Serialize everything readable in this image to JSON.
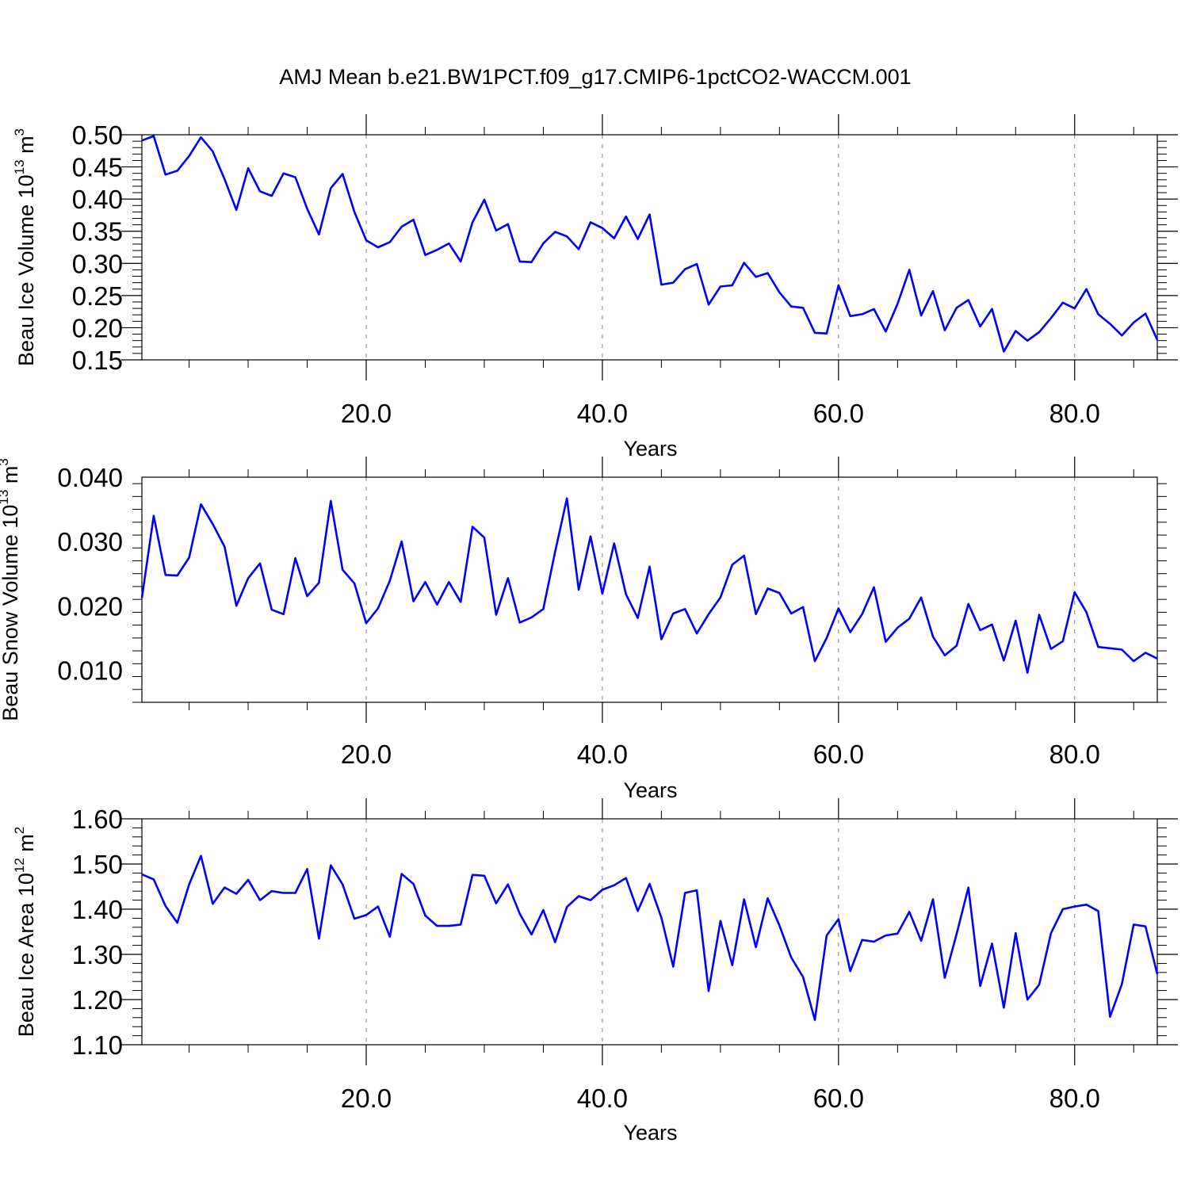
{
  "figure": {
    "title": "AMJ Mean b.e21.BW1PCT.f09_g17.CMIP6-1pctCO2-WACCM.001",
    "line_color": "#0000ff"
  },
  "chart_data": [
    {
      "type": "line",
      "ylabel": "Beau Ice Volume 10",
      "ylabel_exp": "13",
      "ylabel_unit": "m",
      "ylabel_unit_exp": "3",
      "xlabel": "Years",
      "xlim": [
        1,
        87
      ],
      "ylim": [
        0.15,
        0.5
      ],
      "yticks": [
        0.15,
        0.2,
        0.25,
        0.3,
        0.35,
        0.4,
        0.45,
        0.5
      ],
      "ytick_labels": [
        "0.15",
        "0.20",
        "0.25",
        "0.30",
        "0.35",
        "0.40",
        "0.45",
        "0.50"
      ],
      "xticks": [
        20,
        40,
        60,
        80
      ],
      "xtick_labels": [
        "20.0",
        "40.0",
        "60.0",
        "80.0"
      ],
      "grid": "vertical dashed at major x ticks",
      "x": [
        1,
        2,
        3,
        4,
        5,
        6,
        7,
        8,
        9,
        10,
        11,
        12,
        13,
        14,
        15,
        16,
        17,
        18,
        19,
        20,
        21,
        22,
        23,
        24,
        25,
        26,
        27,
        28,
        29,
        30,
        31,
        32,
        33,
        34,
        35,
        36,
        37,
        38,
        39,
        40,
        41,
        42,
        43,
        44,
        45,
        46,
        47,
        48,
        49,
        50,
        51,
        52,
        53,
        54,
        55,
        56,
        57,
        58,
        59,
        60,
        61,
        62,
        63,
        64,
        65,
        66,
        67,
        68,
        69,
        70,
        71,
        72,
        73,
        74,
        75,
        76,
        77,
        78,
        79,
        80,
        81,
        82,
        83,
        84,
        85,
        86,
        87
      ],
      "values": [
        0.491,
        0.498,
        0.438,
        0.444,
        0.467,
        0.496,
        0.474,
        0.431,
        0.383,
        0.448,
        0.412,
        0.405,
        0.44,
        0.434,
        0.385,
        0.345,
        0.417,
        0.439,
        0.38,
        0.336,
        0.325,
        0.333,
        0.357,
        0.368,
        0.313,
        0.321,
        0.331,
        0.303,
        0.364,
        0.399,
        0.351,
        0.361,
        0.303,
        0.302,
        0.331,
        0.349,
        0.342,
        0.322,
        0.364,
        0.355,
        0.339,
        0.373,
        0.338,
        0.376,
        0.267,
        0.27,
        0.291,
        0.299,
        0.236,
        0.264,
        0.266,
        0.301,
        0.279,
        0.285,
        0.255,
        0.233,
        0.231,
        0.192,
        0.191,
        0.266,
        0.218,
        0.221,
        0.229,
        0.194,
        0.237,
        0.29,
        0.219,
        0.257,
        0.196,
        0.231,
        0.243,
        0.202,
        0.229,
        0.163,
        0.195,
        0.18,
        0.193,
        0.215,
        0.239,
        0.23,
        0.26,
        0.221,
        0.206,
        0.188,
        0.208,
        0.222,
        0.181
      ]
    },
    {
      "type": "line",
      "ylabel": "Beau Snow Volume 10",
      "ylabel_exp": "13",
      "ylabel_unit": "m",
      "ylabel_unit_exp": "3",
      "xlabel": "Years",
      "xlim": [
        1,
        87
      ],
      "ylim": [
        0.005,
        0.04
      ],
      "yticks": [
        0.01,
        0.02,
        0.03,
        0.04
      ],
      "ytick_labels": [
        "0.010",
        "0.020",
        "0.030",
        "0.040"
      ],
      "xticks": [
        20,
        40,
        60,
        80
      ],
      "xtick_labels": [
        "20.0",
        "40.0",
        "60.0",
        "80.0"
      ],
      "grid": "vertical dashed at major x ticks",
      "x": [
        1,
        2,
        3,
        4,
        5,
        6,
        7,
        8,
        9,
        10,
        11,
        12,
        13,
        14,
        15,
        16,
        17,
        18,
        19,
        20,
        21,
        22,
        23,
        24,
        25,
        26,
        27,
        28,
        29,
        30,
        31,
        32,
        33,
        34,
        35,
        36,
        37,
        38,
        39,
        40,
        41,
        42,
        43,
        44,
        45,
        46,
        47,
        48,
        49,
        50,
        51,
        52,
        53,
        54,
        55,
        56,
        57,
        58,
        59,
        60,
        61,
        62,
        63,
        64,
        65,
        66,
        67,
        68,
        69,
        70,
        71,
        72,
        73,
        74,
        75,
        76,
        77,
        78,
        79,
        80,
        81,
        82,
        83,
        84,
        85,
        86,
        87
      ],
      "values": [
        0.0212,
        0.034,
        0.0248,
        0.0247,
        0.0275,
        0.0358,
        0.0327,
        0.0292,
        0.02,
        0.0243,
        0.0266,
        0.0194,
        0.0187,
        0.0274,
        0.0215,
        0.0236,
        0.0363,
        0.0256,
        0.0235,
        0.0173,
        0.0196,
        0.0239,
        0.03,
        0.0207,
        0.0237,
        0.0202,
        0.0237,
        0.0206,
        0.0323,
        0.0306,
        0.0186,
        0.0243,
        0.0174,
        0.0182,
        0.0195,
        0.0284,
        0.0367,
        0.0225,
        0.0308,
        0.0219,
        0.0297,
        0.0218,
        0.0181,
        0.0261,
        0.0148,
        0.0188,
        0.0195,
        0.0157,
        0.0187,
        0.0213,
        0.0264,
        0.0278,
        0.0187,
        0.0227,
        0.022,
        0.0188,
        0.0198,
        0.0114,
        0.015,
        0.0196,
        0.0159,
        0.0187,
        0.0229,
        0.0144,
        0.0166,
        0.018,
        0.0213,
        0.0152,
        0.0123,
        0.0138,
        0.0203,
        0.0162,
        0.0171,
        0.0115,
        0.0177,
        0.0096,
        0.0186,
        0.0133,
        0.0145,
        0.0221,
        0.019,
        0.0136,
        0.0134,
        0.0132,
        0.0114,
        0.0127,
        0.0118
      ]
    },
    {
      "type": "line",
      "ylabel": "Beau Ice Area 10",
      "ylabel_exp": "12",
      "ylabel_unit": "m",
      "ylabel_unit_exp": "2",
      "xlabel": "Years",
      "xlim": [
        1,
        87
      ],
      "ylim": [
        1.1,
        1.6
      ],
      "yticks": [
        1.1,
        1.2,
        1.3,
        1.4,
        1.5,
        1.6
      ],
      "ytick_labels": [
        "1.10",
        "1.20",
        "1.30",
        "1.40",
        "1.50",
        "1.60"
      ],
      "xticks": [
        20,
        40,
        60,
        80
      ],
      "xtick_labels": [
        "20.0",
        "40.0",
        "60.0",
        "80.0"
      ],
      "grid": "vertical dashed at major x ticks",
      "x": [
        1,
        2,
        3,
        4,
        5,
        6,
        7,
        8,
        9,
        10,
        11,
        12,
        13,
        14,
        15,
        16,
        17,
        18,
        19,
        20,
        21,
        22,
        23,
        24,
        25,
        26,
        27,
        28,
        29,
        30,
        31,
        32,
        33,
        34,
        35,
        36,
        37,
        38,
        39,
        40,
        41,
        42,
        43,
        44,
        45,
        46,
        47,
        48,
        49,
        50,
        51,
        52,
        53,
        54,
        55,
        56,
        57,
        58,
        59,
        60,
        61,
        62,
        63,
        64,
        65,
        66,
        67,
        68,
        69,
        70,
        71,
        72,
        73,
        74,
        75,
        76,
        77,
        78,
        79,
        80,
        81,
        82,
        83,
        84,
        85,
        86,
        87
      ],
      "values": [
        1.477,
        1.466,
        1.407,
        1.37,
        1.455,
        1.518,
        1.412,
        1.448,
        1.434,
        1.465,
        1.42,
        1.44,
        1.436,
        1.436,
        1.489,
        1.335,
        1.497,
        1.455,
        1.379,
        1.387,
        1.406,
        1.339,
        1.478,
        1.456,
        1.386,
        1.363,
        1.363,
        1.366,
        1.476,
        1.474,
        1.413,
        1.455,
        1.39,
        1.344,
        1.398,
        1.327,
        1.405,
        1.429,
        1.42,
        1.443,
        1.453,
        1.469,
        1.396,
        1.456,
        1.381,
        1.273,
        1.436,
        1.442,
        1.219,
        1.374,
        1.276,
        1.422,
        1.316,
        1.424,
        1.364,
        1.293,
        1.25,
        1.155,
        1.342,
        1.378,
        1.263,
        1.332,
        1.328,
        1.342,
        1.346,
        1.394,
        1.33,
        1.422,
        1.248,
        1.345,
        1.448,
        1.23,
        1.324,
        1.182,
        1.347,
        1.2,
        1.233,
        1.347,
        1.4,
        1.406,
        1.41,
        1.396,
        1.162,
        1.234,
        1.366,
        1.362,
        1.256
      ]
    }
  ]
}
